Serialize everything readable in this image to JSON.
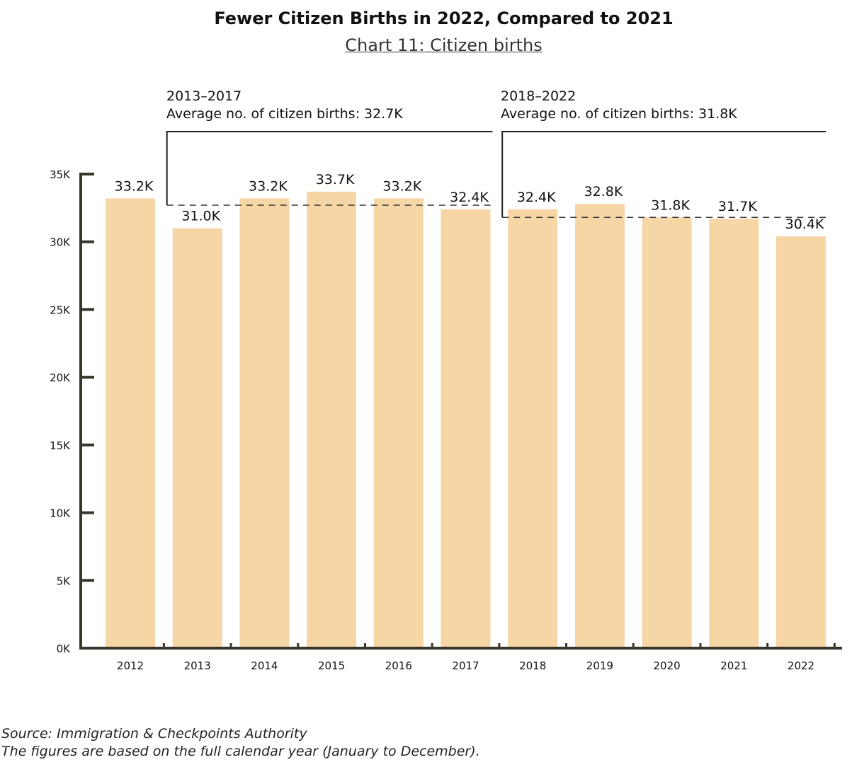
{
  "chart_data": {
    "type": "bar",
    "title": "Fewer Citizen Births in 2022, Compared to 2021",
    "subtitle": "Chart 11: Citizen births",
    "categories": [
      "2012",
      "2013",
      "2014",
      "2015",
      "2016",
      "2017",
      "2018",
      "2019",
      "2020",
      "2021",
      "2022"
    ],
    "values": [
      33.2,
      31.0,
      33.2,
      33.7,
      33.2,
      32.4,
      32.4,
      32.8,
      31.8,
      31.7,
      30.4
    ],
    "value_unit": "K",
    "data_labels": [
      "33.2K",
      "31.0K",
      "33.2K",
      "33.7K",
      "33.2K",
      "32.4K",
      "32.4K",
      "32.8K",
      "31.8K",
      "31.7K",
      "30.4K"
    ],
    "ylim": [
      0,
      35
    ],
    "yticks": [
      "0K",
      "5K",
      "10K",
      "15K",
      "20K",
      "25K",
      "30K",
      "35K"
    ],
    "xlabel": "",
    "ylabel": "",
    "grid": false,
    "bar_color": "#f7d6a6",
    "axis_color": "#38352a",
    "annotations": [
      {
        "period": "2013–2017",
        "text": "Average no. of citizen births: 32.7K",
        "average": 32.7,
        "from": "2013",
        "to": "2017"
      },
      {
        "period": "2018–2022",
        "text": "Average no. of citizen births: 31.8K",
        "average": 31.8,
        "from": "2018",
        "to": "2022"
      }
    ]
  },
  "footer": {
    "source": "Source: Immigration & Checkpoints Authority",
    "note": "The figures are based on the full calendar year (January to December)."
  }
}
